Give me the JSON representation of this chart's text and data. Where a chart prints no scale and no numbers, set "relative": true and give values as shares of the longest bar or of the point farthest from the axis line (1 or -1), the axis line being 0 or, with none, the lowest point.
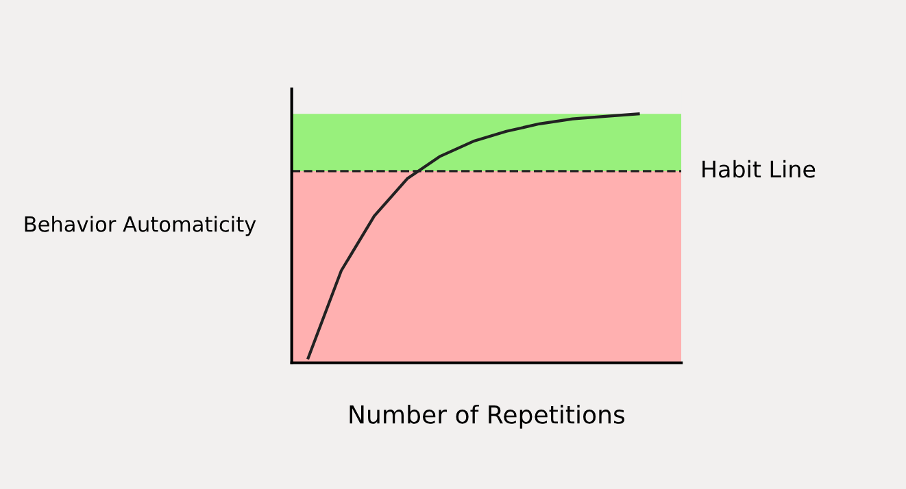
{
  "chart_data": {
    "type": "line",
    "relative": true,
    "xlabel": "Number of Repetitions",
    "ylabel": "Behavior Automaticity",
    "categories": [
      null,
      null,
      null,
      null,
      null,
      null,
      null,
      null,
      null,
      null,
      null
    ],
    "series": [
      {
        "color": "#222222",
        "values": [
          0.02,
          0.37,
          0.59,
          0.74,
          0.83,
          0.89,
          0.93,
          0.96,
          0.98,
          0.99,
          1.0
        ]
      }
    ],
    "ref_lines": [
      {
        "axis": "y",
        "value": 0.77,
        "label": "Habit Line",
        "line_style": "dashed",
        "color": "#222222"
      }
    ],
    "bands": [
      {
        "axis": "y",
        "from": 0,
        "to": 0.77,
        "color": "#ffb0b0"
      },
      {
        "axis": "y",
        "from": 0.77,
        "to": 1.0,
        "color": "#98f07c"
      }
    ],
    "legend": false,
    "marker": "none",
    "line_style": "solid"
  }
}
